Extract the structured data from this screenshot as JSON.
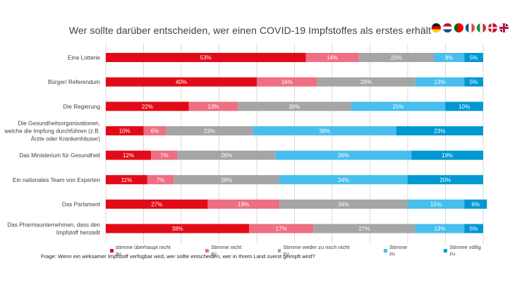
{
  "flags": [
    "germany-flag",
    "netherlands-flag",
    "portugal-flag",
    "france-flag",
    "italy-flag",
    "denmark-flag",
    "uk-flag"
  ],
  "question": "Frage: Wenn ein wirksamer Impfstoff verfügbar wird, wer sollte entscheiden, wer in Ihrem Land zuerst geimpft wird?",
  "chart_data": {
    "type": "bar",
    "orientation": "horizontal",
    "stacked": true,
    "title": "Wer sollte darüber entscheiden,  wer einen COVID-19 Impfstoffes als erstes erhält",
    "xlabel": "",
    "ylabel": "",
    "xlim": [
      0,
      100
    ],
    "grid": true,
    "legend_position": "bottom",
    "categories": [
      "Eine Lotterie",
      "Bürger/ Referendum",
      "Die Regierung",
      "Die Gesundheitsorganisationen, welche die Impfung durchführen (z.B. Ärzte oder Krankenhäuser)",
      "Das Ministerium für Gesundheit",
      "Ein nationales Team von Experten",
      "Das Parlament",
      "Das Pharmaunternehmen, dass den Impfstoff herstellt"
    ],
    "category_lines": [
      [
        "Eine Lotterie"
      ],
      [
        "Bürger/ Referendum"
      ],
      [
        "Die Regierung"
      ],
      [
        "Die Gesundheitsorganisationen,",
        "welche die Impfung durchführen (z.B.",
        "Ärzte oder Krankenhäuser)"
      ],
      [
        "Das Ministerium für Gesundheit"
      ],
      [
        "Ein nationales Team von Experten"
      ],
      [
        "Das Parlament"
      ],
      [
        "Das Pharmaunternehmen, dass den",
        "Impfstoff herstellt"
      ]
    ],
    "series": [
      {
        "name": "stimme überhaupt nicht zu",
        "color": "#E30A18",
        "values": [
          53,
          40,
          22,
          10,
          12,
          11,
          27,
          38
        ]
      },
      {
        "name": "Stimme nicht zu",
        "color": "#EE6E82",
        "values": [
          14,
          16,
          13,
          6,
          7,
          7,
          19,
          17
        ]
      },
      {
        "name": "Stimme weder zu noch nicht zu",
        "color": "#A5A5A5",
        "values": [
          20,
          26,
          30,
          23,
          26,
          28,
          34,
          27
        ]
      },
      {
        "name": "Stimme zu",
        "color": "#47BEEE",
        "values": [
          8,
          13,
          25,
          38,
          36,
          34,
          15,
          13
        ]
      },
      {
        "name": "Stimme völlig zu",
        "color": "#0098D2",
        "values": [
          5,
          5,
          10,
          23,
          19,
          20,
          6,
          5
        ]
      }
    ]
  }
}
